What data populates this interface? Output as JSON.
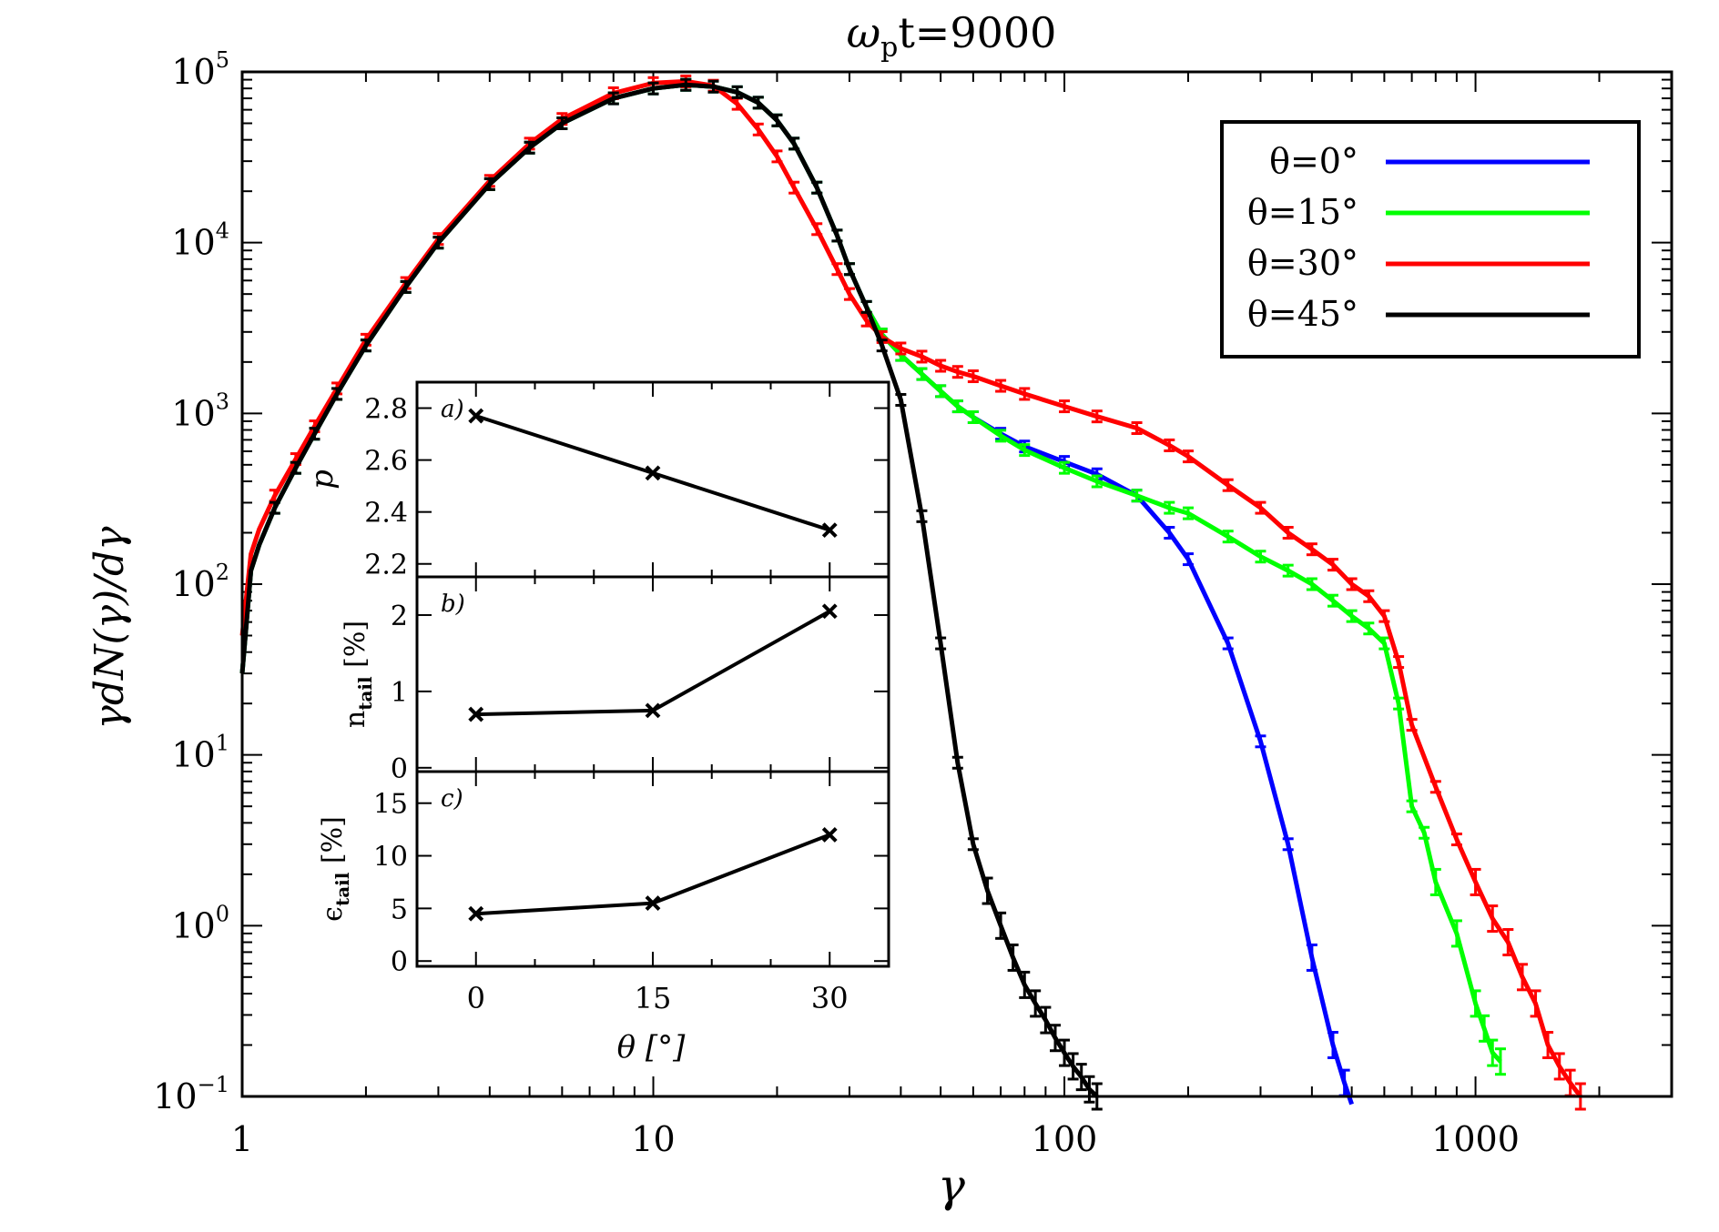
{
  "chart_data": [
    {
      "type": "line",
      "title": "ω",
      "title_subscript": "p",
      "title_suffix": "t=9000",
      "xlabel": "γ",
      "ylabel": "γdN(γ)/dγ",
      "xscale": "log",
      "yscale": "log",
      "xlim": [
        1,
        3000
      ],
      "ylim": [
        0.1,
        100000
      ],
      "x_ticks": [
        {
          "value": 1,
          "label": "1"
        },
        {
          "value": 10,
          "label": "10"
        },
        {
          "value": 100,
          "label": "100"
        },
        {
          "value": 1000,
          "label": "1000"
        }
      ],
      "y_ticks": [
        {
          "value": 100000,
          "base": "10",
          "exp": "5"
        },
        {
          "value": 10000,
          "base": "10",
          "exp": "4"
        },
        {
          "value": 1000,
          "base": "10",
          "exp": "3"
        },
        {
          "value": 100,
          "base": "10",
          "exp": "2"
        },
        {
          "value": 10,
          "base": "10",
          "exp": "1"
        },
        {
          "value": 1,
          "base": "10",
          "exp": "0"
        },
        {
          "value": 0.1,
          "base": "10",
          "exp": "−1"
        }
      ],
      "legend_position": "top-right",
      "series": [
        {
          "name": "θ=0°",
          "color": "#0000ff",
          "x": [
            1.0,
            1.05,
            1.1,
            1.2,
            1.35,
            1.5,
            1.7,
            2,
            2.5,
            3,
            4,
            5,
            6,
            8,
            10,
            12,
            14,
            16,
            18,
            20,
            22,
            25,
            28,
            30,
            33,
            36,
            40,
            45,
            50,
            55,
            60,
            70,
            80,
            100,
            120,
            150,
            180,
            200,
            250,
            300,
            350,
            400,
            450,
            480,
            500
          ],
          "y": [
            30,
            120,
            170,
            280,
            480,
            760,
            1300,
            2500,
            5500,
            10000,
            22000,
            36000,
            50000,
            70000,
            80000,
            84000,
            82000,
            76000,
            66000,
            52000,
            38000,
            21000,
            11000,
            7000,
            4200,
            2900,
            2200,
            1700,
            1350,
            1100,
            950,
            760,
            640,
            520,
            440,
            330,
            200,
            140,
            45,
            12,
            3,
            0.65,
            0.2,
            0.12,
            0.09
          ]
        },
        {
          "name": "θ=15°",
          "color": "#00ff00",
          "x": [
            1.0,
            1.05,
            1.1,
            1.2,
            1.35,
            1.5,
            1.7,
            2,
            2.5,
            3,
            4,
            5,
            6,
            8,
            10,
            12,
            14,
            16,
            18,
            20,
            22,
            25,
            28,
            30,
            33,
            36,
            40,
            45,
            50,
            55,
            60,
            70,
            80,
            100,
            120,
            150,
            180,
            200,
            250,
            300,
            350,
            400,
            450,
            500,
            550,
            600,
            650,
            700,
            750,
            800,
            900,
            1000,
            1050,
            1100,
            1150
          ],
          "y": [
            30,
            120,
            170,
            280,
            480,
            760,
            1300,
            2500,
            5500,
            10000,
            22000,
            36000,
            50000,
            70000,
            80000,
            84000,
            82000,
            76000,
            66000,
            52000,
            38000,
            21000,
            11000,
            7000,
            4200,
            2900,
            2200,
            1700,
            1350,
            1100,
            950,
            740,
            610,
            480,
            400,
            330,
            280,
            260,
            190,
            145,
            120,
            100,
            80,
            65,
            55,
            45,
            20,
            5,
            3.5,
            1.8,
            0.9,
            0.35,
            0.25,
            0.18,
            0.16
          ]
        },
        {
          "name": "θ=30°",
          "color": "#ff0000",
          "x": [
            1.0,
            1.05,
            1.1,
            1.2,
            1.35,
            1.5,
            1.7,
            2,
            2.5,
            3,
            4,
            5,
            6,
            8,
            10,
            12,
            14,
            16,
            18,
            20,
            22,
            25,
            28,
            30,
            33,
            36,
            40,
            45,
            50,
            55,
            60,
            70,
            80,
            100,
            120,
            150,
            180,
            200,
            250,
            300,
            350,
            400,
            450,
            500,
            550,
            600,
            650,
            700,
            800,
            900,
            1000,
            1100,
            1200,
            1300,
            1400,
            1500,
            1600,
            1700,
            1800
          ],
          "y": [
            50,
            150,
            210,
            330,
            540,
            840,
            1400,
            2700,
            5800,
            10500,
            23000,
            38000,
            53000,
            75000,
            86000,
            88000,
            83000,
            65000,
            46000,
            32000,
            21000,
            12000,
            7000,
            5000,
            3500,
            2800,
            2400,
            2150,
            1900,
            1750,
            1650,
            1450,
            1300,
            1100,
            960,
            820,
            650,
            560,
            380,
            280,
            200,
            160,
            130,
            100,
            85,
            65,
            35,
            15,
            6.5,
            3.2,
            1.8,
            1.1,
            0.8,
            0.5,
            0.35,
            0.2,
            0.15,
            0.12,
            0.1
          ]
        },
        {
          "name": "θ=45°",
          "color": "#000000",
          "x": [
            1.0,
            1.05,
            1.1,
            1.2,
            1.35,
            1.5,
            1.7,
            2,
            2.5,
            3,
            4,
            5,
            6,
            8,
            10,
            12,
            14,
            16,
            18,
            20,
            22,
            25,
            28,
            30,
            33,
            36,
            40,
            45,
            50,
            55,
            60,
            65,
            70,
            75,
            80,
            85,
            90,
            95,
            100,
            105,
            110,
            115,
            120
          ],
          "y": [
            30,
            120,
            170,
            280,
            480,
            760,
            1300,
            2500,
            5500,
            10000,
            22000,
            36000,
            50000,
            70000,
            80000,
            84000,
            82000,
            76000,
            66000,
            52000,
            38000,
            21000,
            11000,
            7000,
            4200,
            2500,
            1200,
            250,
            45,
            9,
            3,
            1.6,
            1.0,
            0.65,
            0.45,
            0.35,
            0.28,
            0.22,
            0.18,
            0.15,
            0.13,
            0.11,
            0.1
          ]
        }
      ]
    },
    {
      "type": "line",
      "panel": "a)",
      "xlabel": "θ [°]",
      "ylabel": "p",
      "x": [
        0,
        15,
        30
      ],
      "values": [
        2.77,
        2.55,
        2.33
      ],
      "xlim": [
        -5,
        35
      ],
      "ylim": [
        2.15,
        2.9
      ],
      "y_ticks": [
        2.2,
        2.4,
        2.6,
        2.8
      ],
      "y_tick_labels": [
        "2.2",
        "2.4",
        "2.6",
        "2.8"
      ]
    },
    {
      "type": "line",
      "panel": "b)",
      "xlabel": "θ [°]",
      "ylabel": "n",
      "ylabel_subscript": "tail",
      "ylabel_suffix": " [%]",
      "x": [
        0,
        15,
        30
      ],
      "values": [
        0.7,
        0.75,
        2.05
      ],
      "xlim": [
        -5,
        35
      ],
      "ylim": [
        -0.05,
        2.5
      ],
      "y_ticks": [
        0,
        1,
        2
      ],
      "y_tick_labels": [
        "0",
        "1",
        "2"
      ]
    },
    {
      "type": "line",
      "panel": "c)",
      "xlabel": "θ [°]",
      "ylabel": "ϵ",
      "ylabel_subscript": "tail",
      "ylabel_suffix": " [%]",
      "x": [
        0,
        15,
        30
      ],
      "values": [
        4.5,
        5.5,
        12
      ],
      "xlim": [
        -5,
        35
      ],
      "ylim": [
        -0.5,
        18
      ],
      "x_ticks": [
        0,
        15,
        30
      ],
      "x_tick_labels": [
        "0",
        "15",
        "30"
      ],
      "y_ticks": [
        0,
        5,
        10,
        15
      ],
      "y_tick_labels": [
        "0",
        "5",
        "10",
        "15"
      ]
    }
  ]
}
